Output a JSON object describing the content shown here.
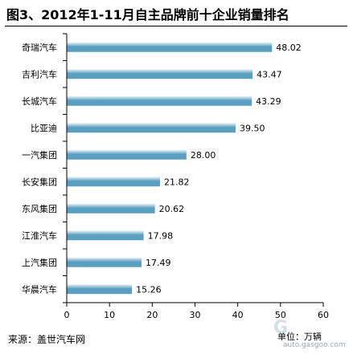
{
  "title": "图3、2012年1-11月自主品牌前十企业销量排名",
  "source": "来源：盖世汽车网",
  "unit": "单位：万辆",
  "watermark": "auto.gasgoo.com",
  "colors": {
    "bar_dark": "#5b9fc0",
    "bar_light": "#e9f3f8",
    "axis": "#000000"
  },
  "chart_data": {
    "type": "bar",
    "orientation": "horizontal",
    "categories": [
      "奇瑞汽车",
      "吉利汽车",
      "长城汽车",
      "比亚迪",
      "一汽集团",
      "长安集团",
      "东风集团",
      "江淮汽车",
      "上汽集团",
      "华晨汽车"
    ],
    "values": [
      48.02,
      43.47,
      43.29,
      39.5,
      28.0,
      21.82,
      20.62,
      17.98,
      17.49,
      15.26
    ],
    "value_labels": [
      "48.02",
      "43.47",
      "43.29",
      "39.50",
      "28.00",
      "21.82",
      "20.62",
      "17.98",
      "17.49",
      "15.26"
    ],
    "xlim": [
      0,
      60
    ],
    "xticks": [
      "0",
      "10",
      "20",
      "30",
      "40",
      "50",
      "60"
    ],
    "grid": false
  }
}
